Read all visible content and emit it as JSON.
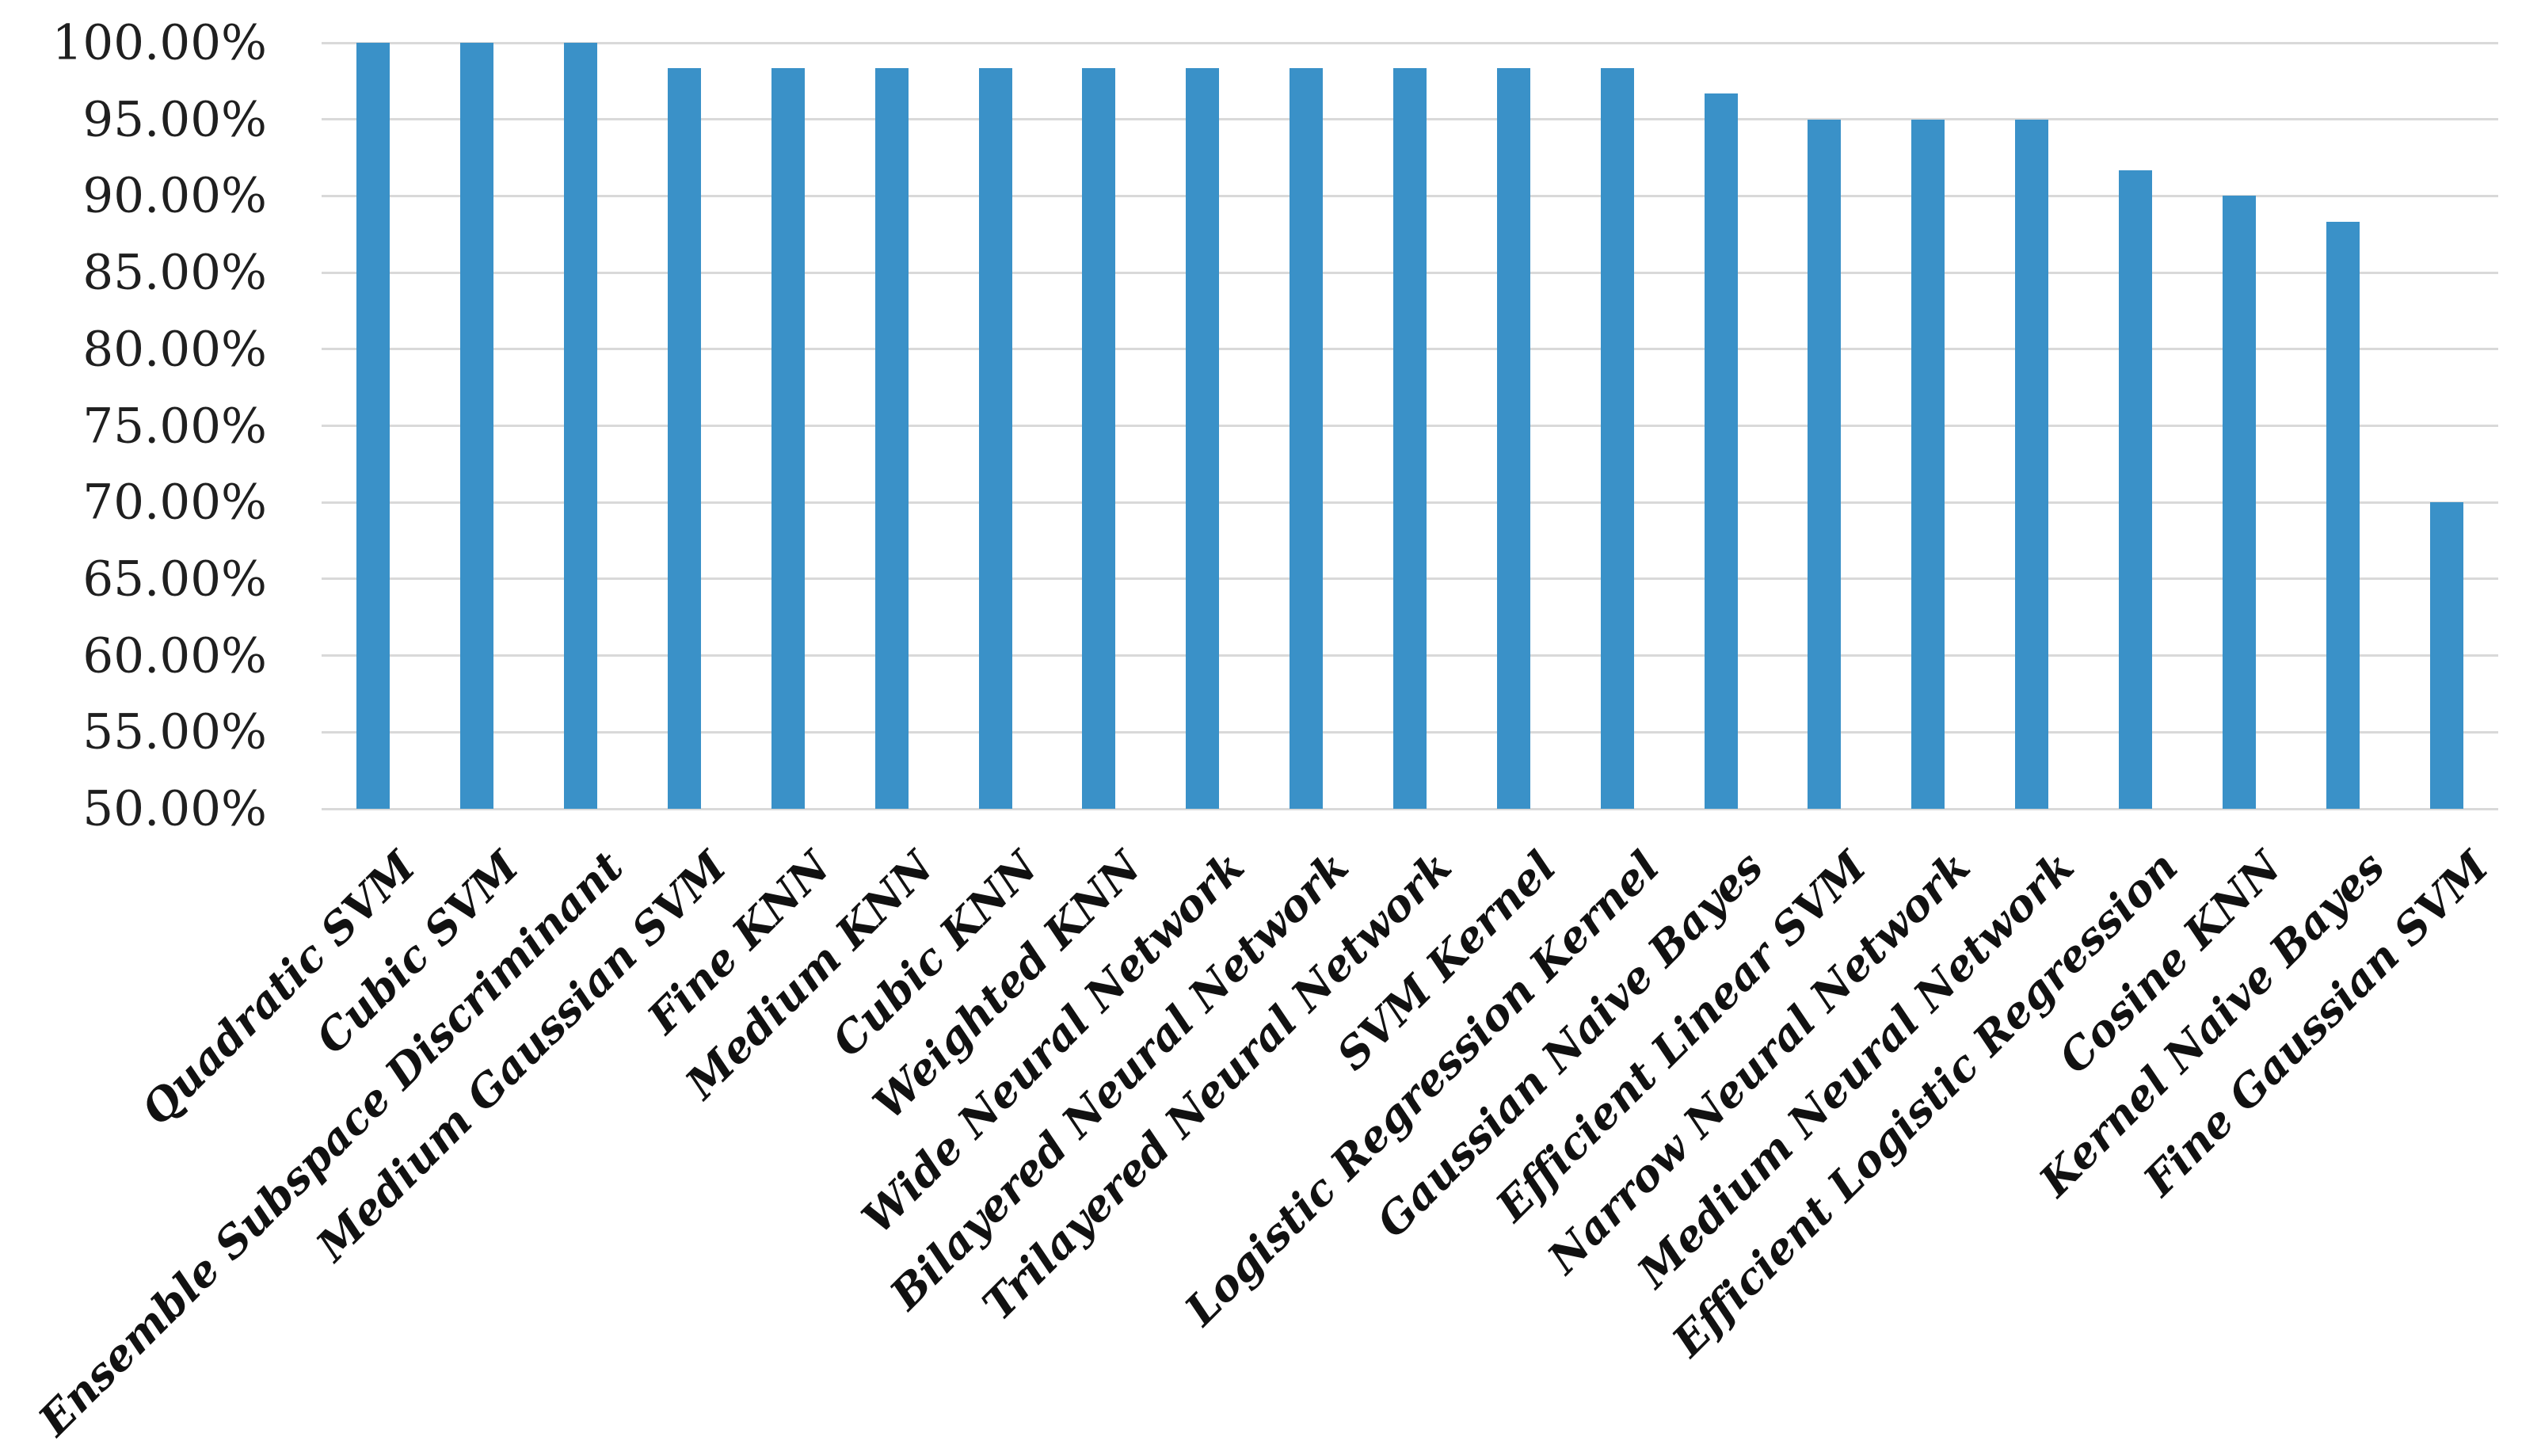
{
  "chart_data": {
    "type": "bar",
    "title": "",
    "xlabel": "",
    "ylabel": "",
    "value_unit": "%",
    "ylim": [
      50,
      100
    ],
    "grid": "horizontal",
    "legend": "none",
    "categories": [
      "Quadratic SVM",
      "Cubic SVM",
      "Ensemble Subspace Discriminant",
      "Medium Gaussian SVM",
      "Fine KNN",
      "Medium KNN",
      "Cubic KNN",
      "Weighted KNN",
      "Wide Neural Network",
      "Bilayered Neural Network",
      "Trilayered Neural Network",
      "SVM Kernel",
      "Logistic Regression Kernel",
      "Gaussian Naive Bayes",
      "Efficient Linear SVM",
      "Narrow Neural Network",
      "Medium Neural Network",
      "Efficient Logistic Regression",
      "Cosine KNN",
      "Kernel Naive Bayes",
      "Fine Gaussian SVM"
    ],
    "values": [
      100,
      100,
      100,
      98.33,
      98.33,
      98.33,
      98.33,
      98.33,
      98.33,
      98.33,
      98.33,
      98.33,
      98.33,
      96.67,
      95,
      95,
      95,
      91.67,
      90,
      88.33,
      70
    ],
    "y_ticks": [
      100,
      95,
      90,
      85,
      80,
      75,
      70,
      65,
      60,
      55,
      50
    ],
    "y_tick_labels": [
      "100.00%",
      "95.00%",
      "90.00%",
      "85.00%",
      "80.00%",
      "75.00%",
      "70.00%",
      "65.00%",
      "60.00%",
      "55.00%",
      "50.00%"
    ],
    "colors": {
      "bar": "#3A91C8",
      "gridline": "#D9D9D9",
      "tick_text": "#1F1F1F",
      "category_text": "#111111",
      "background": "#FFFFFF"
    }
  }
}
